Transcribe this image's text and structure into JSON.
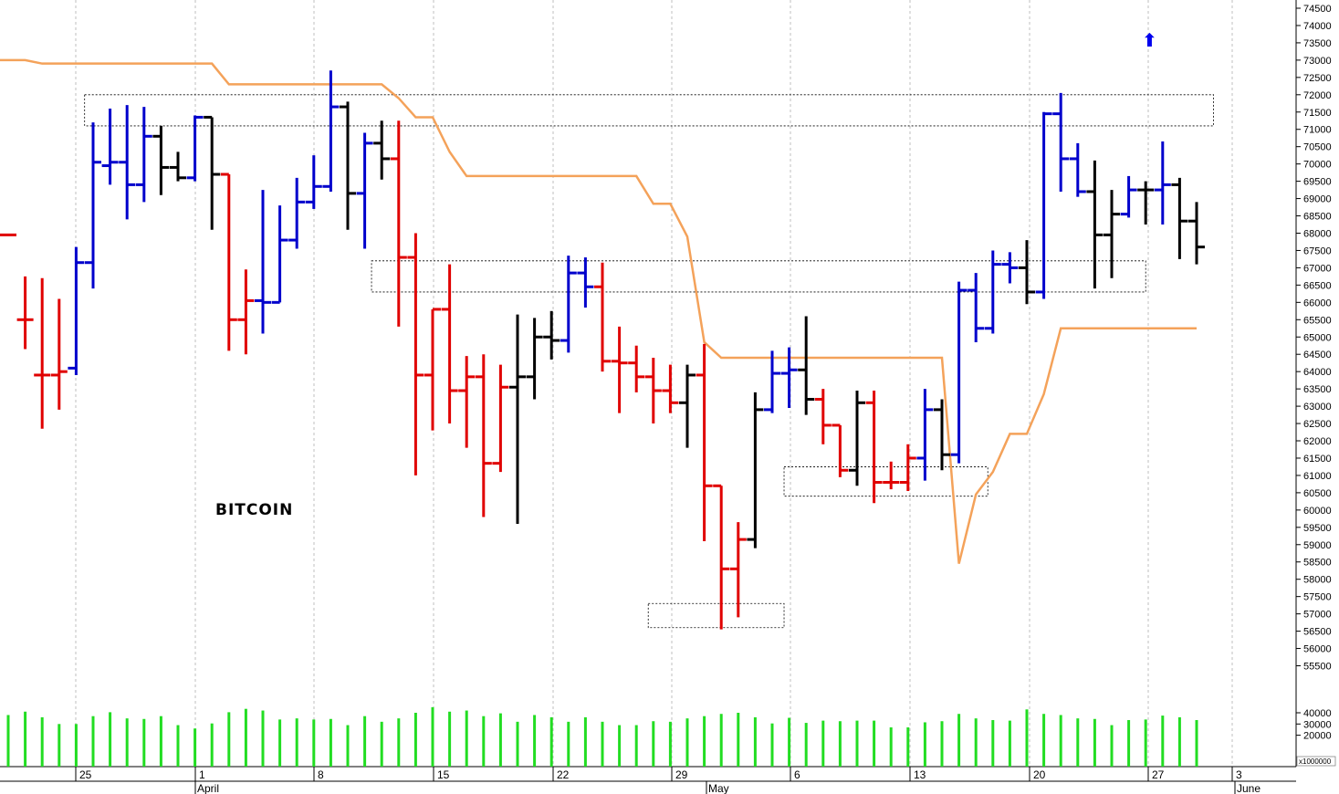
{
  "chart_data": {
    "type": "ohlc",
    "title": "BITCOIN",
    "x_ticks": [
      "25",
      "April",
      "1",
      "8",
      "15",
      "22",
      "29",
      "May",
      "6",
      "13",
      "20",
      "27",
      "3",
      "June"
    ],
    "y_ticks": [
      74500,
      74000,
      73500,
      73000,
      72500,
      72000,
      71500,
      71000,
      70500,
      70000,
      69500,
      69000,
      68500,
      68000,
      67500,
      67000,
      66500,
      66000,
      65500,
      65000,
      64500,
      64000,
      63500,
      63000,
      62500,
      62000,
      61500,
      61000,
      60500,
      60000,
      59500,
      59000,
      58500,
      58000,
      57500,
      57000,
      56500,
      56000,
      55500
    ],
    "volume_ticks": [
      40000,
      30000,
      20000
    ],
    "volume_unit": "x1000000",
    "price_range": [
      55000,
      74700
    ],
    "colors": {
      "up": "#0000cc",
      "down": "#e00000",
      "neutral": "#000000",
      "trail": "#f4a25a",
      "volume": "#22dd22"
    },
    "signal_arrow": {
      "symbol": "⬆",
      "color": "#0000ee"
    },
    "bars": [
      {
        "o": 67950,
        "h": 68100,
        "l": null,
        "c": 67950,
        "k": "down"
      },
      {
        "o": 65500,
        "h": 66750,
        "l": 64650,
        "c": 65500,
        "k": "down"
      },
      {
        "o": 63900,
        "h": 66700,
        "l": 62350,
        "c": 63900,
        "k": "down"
      },
      {
        "o": 63900,
        "h": 66100,
        "l": 62900,
        "c": 64000,
        "k": "down"
      },
      {
        "o": 64100,
        "h": 67600,
        "l": 63900,
        "c": 67150,
        "k": "up"
      },
      {
        "o": 67150,
        "h": 71200,
        "l": 66400,
        "c": 70050,
        "k": "up"
      },
      {
        "o": 69950,
        "h": 71600,
        "l": 69400,
        "c": 70050,
        "k": "up"
      },
      {
        "o": 70050,
        "h": 71700,
        "l": 68400,
        "c": 69400,
        "k": "up"
      },
      {
        "o": 69400,
        "h": 71650,
        "l": 68900,
        "c": 70800,
        "k": "up"
      },
      {
        "o": 70800,
        "h": 71100,
        "l": 69100,
        "c": 69900,
        "k": "neutral"
      },
      {
        "o": 69900,
        "h": 70350,
        "l": 69500,
        "c": 69600,
        "k": "neutral"
      },
      {
        "o": 69600,
        "h": 71400,
        "l": 69500,
        "c": 71350,
        "k": "up"
      },
      {
        "o": 71350,
        "h": 71350,
        "l": 68100,
        "c": 69700,
        "k": "neutral"
      },
      {
        "o": 69700,
        "h": 69700,
        "l": 64600,
        "c": 65500,
        "k": "down"
      },
      {
        "o": 65500,
        "h": 66950,
        "l": 64500,
        "c": 66050,
        "k": "down"
      },
      {
        "o": 66050,
        "h": 69250,
        "l": 65100,
        "c": 66000,
        "k": "up"
      },
      {
        "o": 66000,
        "h": 68800,
        "l": 66000,
        "c": 67800,
        "k": "up"
      },
      {
        "o": 67800,
        "h": 69600,
        "l": 67550,
        "c": 68900,
        "k": "up"
      },
      {
        "o": 68900,
        "h": 70250,
        "l": 68700,
        "c": 69350,
        "k": "up"
      },
      {
        "o": 69350,
        "h": 72700,
        "l": 69200,
        "c": 71650,
        "k": "up"
      },
      {
        "o": 71650,
        "h": 71800,
        "l": 68100,
        "c": 69150,
        "k": "neutral"
      },
      {
        "o": 69150,
        "h": 70900,
        "l": 67550,
        "c": 70600,
        "k": "up"
      },
      {
        "o": 70600,
        "h": 71250,
        "l": 69550,
        "c": 70150,
        "k": "neutral"
      },
      {
        "o": 70150,
        "h": 71250,
        "l": 65300,
        "c": 67300,
        "k": "down"
      },
      {
        "o": 67300,
        "h": 68000,
        "l": 61000,
        "c": 63900,
        "k": "down"
      },
      {
        "o": 63900,
        "h": 65800,
        "l": 62300,
        "c": 65800,
        "k": "down"
      },
      {
        "o": 65800,
        "h": 67100,
        "l": 62500,
        "c": 63450,
        "k": "down"
      },
      {
        "o": 63450,
        "h": 64450,
        "l": 61800,
        "c": 63850,
        "k": "down"
      },
      {
        "o": 63850,
        "h": 64500,
        "l": 59800,
        "c": 61350,
        "k": "down"
      },
      {
        "o": 61350,
        "h": 64200,
        "l": 61100,
        "c": 63550,
        "k": "down"
      },
      {
        "o": 63550,
        "h": 65650,
        "l": 59600,
        "c": 63850,
        "k": "neutral"
      },
      {
        "o": 63850,
        "h": 65550,
        "l": 63200,
        "c": 65000,
        "k": "neutral"
      },
      {
        "o": 65000,
        "h": 65750,
        "l": 64350,
        "c": 64900,
        "k": "neutral"
      },
      {
        "o": 64900,
        "h": 67350,
        "l": 64550,
        "c": 66850,
        "k": "up"
      },
      {
        "o": 66850,
        "h": 67300,
        "l": 65850,
        "c": 66450,
        "k": "up"
      },
      {
        "o": 66450,
        "h": 67150,
        "l": 64000,
        "c": 64300,
        "k": "down"
      },
      {
        "o": 64300,
        "h": 65300,
        "l": 62800,
        "c": 64250,
        "k": "down"
      },
      {
        "o": 64250,
        "h": 64750,
        "l": 63400,
        "c": 63850,
        "k": "down"
      },
      {
        "o": 63850,
        "h": 64400,
        "l": 62500,
        "c": 63450,
        "k": "down"
      },
      {
        "o": 63450,
        "h": 64200,
        "l": 62800,
        "c": 63100,
        "k": "down"
      },
      {
        "o": 63100,
        "h": 64200,
        "l": 61800,
        "c": 63900,
        "k": "neutral"
      },
      {
        "o": 63900,
        "h": 64800,
        "l": 59100,
        "c": 60700,
        "k": "down"
      },
      {
        "o": 60700,
        "h": 60700,
        "l": 56550,
        "c": 58300,
        "k": "down"
      },
      {
        "o": 58300,
        "h": 59650,
        "l": 56900,
        "c": 59150,
        "k": "down"
      },
      {
        "o": 59150,
        "h": 63400,
        "l": 58900,
        "c": 62900,
        "k": "neutral"
      },
      {
        "o": 62900,
        "h": 64600,
        "l": 62800,
        "c": 63950,
        "k": "up"
      },
      {
        "o": 63950,
        "h": 64700,
        "l": 62950,
        "c": 64050,
        "k": "up"
      },
      {
        "o": 64050,
        "h": 65600,
        "l": 62750,
        "c": 63200,
        "k": "neutral"
      },
      {
        "o": 63200,
        "h": 63500,
        "l": 61900,
        "c": 62450,
        "k": "down"
      },
      {
        "o": 62450,
        "h": 62450,
        "l": 60950,
        "c": 61150,
        "k": "down"
      },
      {
        "o": 61150,
        "h": 63450,
        "l": 60700,
        "c": 63100,
        "k": "neutral"
      },
      {
        "o": 63100,
        "h": 63450,
        "l": 60200,
        "c": 60800,
        "k": "down"
      },
      {
        "o": 60800,
        "h": 61400,
        "l": 60600,
        "c": 60800,
        "k": "down"
      },
      {
        "o": 60800,
        "h": 61900,
        "l": 60550,
        "c": 61500,
        "k": "down"
      },
      {
        "o": 61500,
        "h": 63500,
        "l": 60850,
        "c": 62900,
        "k": "up"
      },
      {
        "o": 62900,
        "h": 63200,
        "l": 61150,
        "c": 61600,
        "k": "neutral"
      },
      {
        "o": 61600,
        "h": 66600,
        "l": 61350,
        "c": 66350,
        "k": "up"
      },
      {
        "o": 66350,
        "h": 66850,
        "l": 64850,
        "c": 65250,
        "k": "up"
      },
      {
        "o": 65250,
        "h": 67500,
        "l": 65100,
        "c": 67100,
        "k": "up"
      },
      {
        "o": 67100,
        "h": 67450,
        "l": 66550,
        "c": 67000,
        "k": "up"
      },
      {
        "o": 67000,
        "h": 67800,
        "l": 65950,
        "c": 66300,
        "k": "neutral"
      },
      {
        "o": 66300,
        "h": 71500,
        "l": 66100,
        "c": 71450,
        "k": "up"
      },
      {
        "o": 71450,
        "h": 72050,
        "l": 69200,
        "c": 70150,
        "k": "up"
      },
      {
        "o": 70150,
        "h": 70600,
        "l": 69050,
        "c": 69200,
        "k": "up"
      },
      {
        "o": 69200,
        "h": 70100,
        "l": 66400,
        "c": 67950,
        "k": "neutral"
      },
      {
        "o": 67950,
        "h": 69250,
        "l": 66700,
        "c": 68550,
        "k": "neutral"
      },
      {
        "o": 68550,
        "h": 69650,
        "l": 68450,
        "c": 69250,
        "k": "up"
      },
      {
        "o": 69250,
        "h": 69500,
        "l": 68250,
        "c": 69250,
        "k": "neutral"
      },
      {
        "o": 69250,
        "h": 70650,
        "l": 68250,
        "c": 69400,
        "k": "up"
      },
      {
        "o": 69400,
        "h": 69600,
        "l": 67250,
        "c": 68350,
        "k": "neutral"
      },
      {
        "o": 68350,
        "h": 68900,
        "l": 67100,
        "c": 67600,
        "k": "neutral"
      }
    ],
    "volume": [
      38000,
      41000,
      36000,
      30000,
      30000,
      37000,
      40500,
      35000,
      34500,
      37000,
      29000,
      26000,
      30500,
      40500,
      43500,
      42000,
      34000,
      35000,
      34000,
      34500,
      29000,
      37000,
      32000,
      35000,
      40000,
      45000,
      41000,
      42000,
      37000,
      39500,
      32000,
      38000,
      36000,
      32000,
      36000,
      32000,
      29000,
      29000,
      32500,
      32000,
      35000,
      37000,
      39000,
      40000,
      36000,
      30500,
      35500,
      31000,
      33000,
      32500,
      33000,
      33000,
      27000,
      27000,
      31500,
      32500,
      39000,
      35000,
      33500,
      33000,
      43000,
      39000,
      38000,
      35000,
      34500,
      29000,
      33500,
      34000,
      37500,
      36000,
      33500
    ],
    "trailing_stop": [
      [
        null,
        73000
      ],
      [
        1,
        73000
      ],
      [
        2,
        72900
      ],
      [
        3,
        72900
      ],
      [
        4,
        72900
      ],
      [
        5,
        72900
      ],
      [
        6,
        72900
      ],
      [
        7,
        72900
      ],
      [
        8,
        72900
      ],
      [
        9,
        72900
      ],
      [
        10,
        72900
      ],
      [
        11,
        72900
      ],
      [
        12,
        72900
      ],
      [
        13,
        72300
      ],
      [
        14,
        72300
      ],
      [
        15,
        72300
      ],
      [
        16,
        72300
      ],
      [
        17,
        72300
      ],
      [
        18,
        72300
      ],
      [
        19,
        72300
      ],
      [
        20,
        72300
      ],
      [
        21,
        72300
      ],
      [
        22,
        72300
      ],
      [
        23,
        71900
      ],
      [
        24,
        71350
      ],
      [
        25,
        71350
      ],
      [
        26,
        70350
      ],
      [
        27,
        69650
      ],
      [
        28,
        69650
      ],
      [
        29,
        69650
      ],
      [
        30,
        69650
      ],
      [
        31,
        69650
      ],
      [
        32,
        69650
      ],
      [
        33,
        69650
      ],
      [
        34,
        69650
      ],
      [
        35,
        69650
      ],
      [
        36,
        69650
      ],
      [
        37,
        69650
      ],
      [
        38,
        68850
      ],
      [
        39,
        68850
      ],
      [
        40,
        67900
      ],
      [
        41,
        64850
      ],
      [
        42,
        64400
      ],
      [
        43,
        64400
      ],
      [
        44,
        64400
      ],
      [
        45,
        64400
      ],
      [
        46,
        64400
      ],
      [
        47,
        64400
      ],
      [
        48,
        64400
      ],
      [
        49,
        64400
      ],
      [
        50,
        64400
      ],
      [
        51,
        64400
      ],
      [
        52,
        64400
      ],
      [
        53,
        64400
      ],
      [
        54,
        64400
      ],
      [
        55,
        64400
      ],
      [
        56,
        58450
      ],
      [
        57,
        60450
      ],
      [
        58,
        61100
      ],
      [
        59,
        62200
      ],
      [
        60,
        62200
      ],
      [
        61,
        63350
      ],
      [
        62,
        65250
      ],
      [
        63,
        65250
      ],
      [
        64,
        65250
      ],
      [
        65,
        65250
      ],
      [
        66,
        65250
      ],
      [
        67,
        65250
      ],
      [
        68,
        65250
      ],
      [
        69,
        65250
      ],
      [
        70,
        65250
      ]
    ],
    "zones": [
      {
        "from": 4.5,
        "to": 71.0,
        "top": 72000,
        "bottom": 71100
      },
      {
        "from": 21.4,
        "to": 67.0,
        "top": 67200,
        "bottom": 66300
      },
      {
        "from": 37.7,
        "to": 45.7,
        "top": 57300,
        "bottom": 56600
      },
      {
        "from": 45.7,
        "to": 57.7,
        "top": 61250,
        "bottom": 60400
      }
    ]
  }
}
